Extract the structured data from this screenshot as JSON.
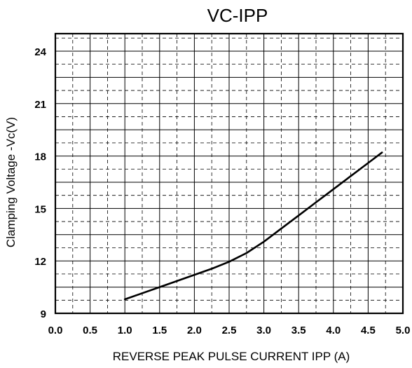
{
  "chart_data": {
    "type": "line",
    "title": "VC-IPP",
    "xlabel": "REVERSE PEAK PULSE CURRENT IPP (A)",
    "ylabel": "Clamping Voltage -Vc(V)",
    "xlim": [
      0,
      5
    ],
    "ylim": [
      9,
      25
    ],
    "x_ticks": [
      "0.0",
      "0.5",
      "1.0",
      "1.5",
      "2.0",
      "2.5",
      "3.0",
      "3.5",
      "4.0",
      "4.5",
      "5.0"
    ],
    "y_ticks": [
      "9",
      "12",
      "15",
      "18",
      "21",
      "24"
    ],
    "grid": true,
    "series": [
      {
        "x": [
          1.0,
          1.25,
          1.5,
          1.75,
          2.0,
          2.25,
          2.5,
          2.75,
          3.0,
          3.25,
          3.5,
          3.75,
          4.0,
          4.25,
          4.5,
          4.7
        ],
        "y": [
          9.8,
          10.15,
          10.5,
          10.85,
          11.2,
          11.55,
          11.95,
          12.45,
          13.1,
          13.85,
          14.6,
          15.35,
          16.1,
          16.85,
          17.6,
          18.2
        ],
        "color": "#000000"
      }
    ]
  }
}
